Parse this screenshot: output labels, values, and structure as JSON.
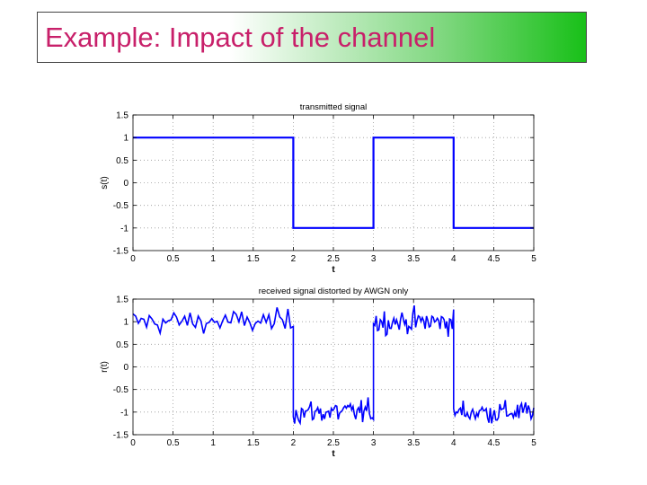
{
  "slide": {
    "title": "Example: Impact of the channel",
    "title_color": "#c8206a",
    "title_gradient": [
      "#ffffff",
      "#18c018"
    ]
  },
  "chart_data": [
    {
      "type": "line",
      "title": "transmitted signal",
      "xlabel": "t",
      "ylabel": "s(t)",
      "xlim": [
        0,
        5
      ],
      "ylim": [
        -1.5,
        1.5
      ],
      "xticks": [
        0,
        0.5,
        1,
        1.5,
        2,
        2.5,
        3,
        3.5,
        4,
        4.5,
        5
      ],
      "yticks": [
        -1.5,
        -1,
        -0.5,
        0,
        0.5,
        1,
        1.5
      ],
      "grid": true,
      "series": [
        {
          "color": "#0000ff",
          "x": [
            0,
            2,
            2,
            3,
            3,
            4,
            4,
            5
          ],
          "y": [
            1,
            1,
            -1,
            -1,
            1,
            1,
            -1,
            -1
          ]
        }
      ]
    },
    {
      "type": "line",
      "title": "received signal distorted by AWGN only",
      "xlabel": "t",
      "ylabel": "r(t)",
      "xlim": [
        0,
        5
      ],
      "ylim": [
        -1.5,
        1.5
      ],
      "xticks": [
        0,
        0.5,
        1,
        1.5,
        2,
        2.5,
        3,
        3.5,
        4,
        4.5,
        5
      ],
      "yticks": [
        -1.5,
        -1,
        -0.5,
        0,
        0.5,
        1,
        1.5
      ],
      "grid": true,
      "series": [
        {
          "color": "#0000ff",
          "base_levels": [
            {
              "x": [
                0,
                2
              ],
              "y": 1
            },
            {
              "x": [
                2,
                3
              ],
              "y": -1
            },
            {
              "x": [
                3,
                4
              ],
              "y": 1
            },
            {
              "x": [
                4,
                5
              ],
              "y": -1
            }
          ],
          "noise_amplitude": 0.5
        }
      ]
    }
  ]
}
